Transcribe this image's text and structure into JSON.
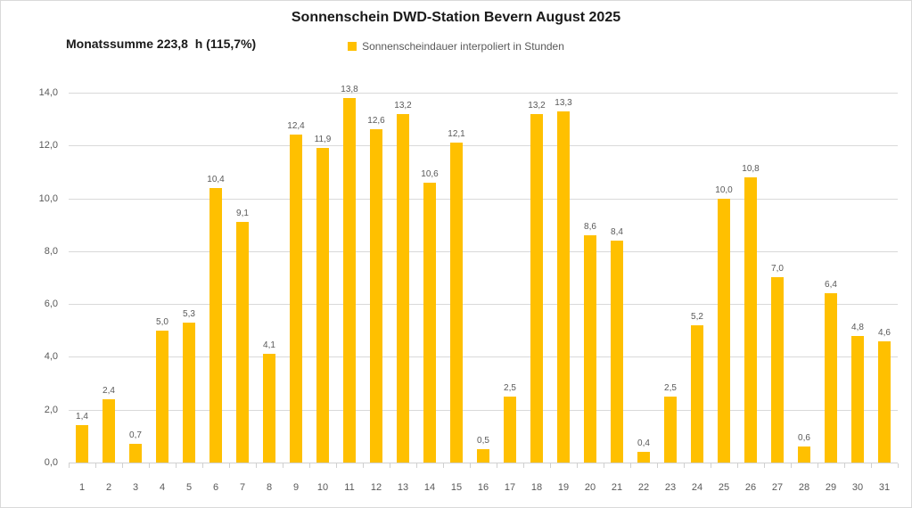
{
  "title": "Sonnenschein DWD-Station Bevern August 2025",
  "subtitle": "Monatssumme 223,8  h (115,7%)",
  "legend": {
    "label": "Sonnenscheindauer interpoliert in Stunden",
    "swatch_color": "#FFC000"
  },
  "colors": {
    "bar": "#FFC000",
    "gridline": "#d9d9d9",
    "axis_text": "#595959",
    "title_text": "#1a1a1a",
    "frame_border": "#d9d9d9"
  },
  "chart_data": {
    "type": "bar",
    "title": "Sonnenschein DWD-Station Bevern August 2025",
    "series_name": "Sonnenscheindauer interpoliert in Stunden",
    "monthly_sum_label": "Monatssumme 223,8  h (115,7%)",
    "categories": [
      "1",
      "2",
      "3",
      "4",
      "5",
      "6",
      "7",
      "8",
      "9",
      "10",
      "11",
      "12",
      "13",
      "14",
      "15",
      "16",
      "17",
      "18",
      "19",
      "20",
      "21",
      "22",
      "23",
      "24",
      "25",
      "26",
      "27",
      "28",
      "29",
      "30",
      "31"
    ],
    "values": [
      1.4,
      2.4,
      0.7,
      5.0,
      5.3,
      10.4,
      9.1,
      4.1,
      12.4,
      11.9,
      13.8,
      12.6,
      13.2,
      10.6,
      12.1,
      0.5,
      2.5,
      13.2,
      13.3,
      8.6,
      8.4,
      0.4,
      2.5,
      5.2,
      10.0,
      10.8,
      7.0,
      0.6,
      6.4,
      4.8,
      4.6
    ],
    "value_labels": [
      "1,4",
      "2,4",
      "0,7",
      "5,0",
      "5,3",
      "10,4",
      "9,1",
      "4,1",
      "12,4",
      "11,9",
      "13,8",
      "12,6",
      "13,2",
      "10,6",
      "12,1",
      "0,5",
      "2,5",
      "13,2",
      "13,3",
      "8,6",
      "8,4",
      "0,4",
      "2,5",
      "5,2",
      "10,0",
      "10,8",
      "7,0",
      "0,6",
      "6,4",
      "4,8",
      "4,6"
    ],
    "xlabel": "",
    "ylabel": "",
    "ylim": [
      0,
      14
    ],
    "ytick_step": 2,
    "ytick_labels": [
      "0,0",
      "2,0",
      "4,0",
      "6,0",
      "8,0",
      "10,0",
      "12,0",
      "14,0"
    ],
    "grid": true,
    "legend_position": "top-center",
    "bar_color": "#FFC000"
  }
}
